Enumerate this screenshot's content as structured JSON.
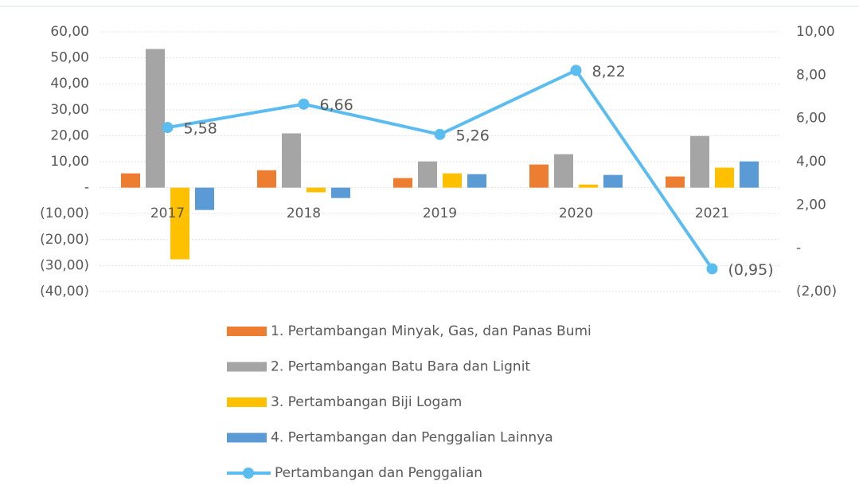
{
  "chart_data": {
    "type": "bar",
    "categories": [
      "2017",
      "2018",
      "2019",
      "2020",
      "2021"
    ],
    "series": [
      {
        "name": "1. Pertambangan Minyak, Gas, dan Panas Bumi",
        "color": "#ed7d31",
        "values": [
          5.5,
          6.7,
          3.7,
          8.9,
          4.3
        ]
      },
      {
        "name": "2. Pertambangan Batu Bara dan Lignit",
        "color": "#a5a5a5",
        "values": [
          53.4,
          20.9,
          10.1,
          12.9,
          19.9
        ]
      },
      {
        "name": "3. Pertambangan Biji Logam",
        "color": "#ffc000",
        "values": [
          -27.6,
          -1.8,
          5.5,
          1.2,
          7.7
        ]
      },
      {
        "name": "4. Pertambangan dan Penggalian Lainnya",
        "color": "#5b9bd5",
        "values": [
          -8.6,
          -4.0,
          5.2,
          4.9,
          10.1
        ]
      },
      {
        "name": "Pertambangan dan Penggalian",
        "color": "#5bbcf0",
        "type": "line",
        "axis": "y2",
        "values": [
          5.58,
          6.66,
          5.26,
          8.22,
          -0.95
        ],
        "value_labels": [
          "5,58",
          "6,66",
          "5,26",
          "8,22",
          "(0,95)"
        ]
      }
    ],
    "ylim": [
      -40,
      60
    ],
    "yticks": [
      {
        "value": 60,
        "label": "60,00"
      },
      {
        "value": 50,
        "label": "50,00"
      },
      {
        "value": 40,
        "label": "40,00"
      },
      {
        "value": 30,
        "label": "30,00"
      },
      {
        "value": 20,
        "label": "20,00"
      },
      {
        "value": 10,
        "label": "10,00"
      },
      {
        "value": 0,
        "label": "-"
      },
      {
        "value": -10,
        "label": "(10,00)"
      },
      {
        "value": -20,
        "label": "(20,00)"
      },
      {
        "value": -30,
        "label": "(30,00)"
      },
      {
        "value": -40,
        "label": "(40,00)"
      }
    ],
    "y2lim": [
      -2,
      10
    ],
    "y2ticks": [
      {
        "value": 10,
        "label": "10,00"
      },
      {
        "value": 8,
        "label": "8,00"
      },
      {
        "value": 6,
        "label": "6,00"
      },
      {
        "value": 4,
        "label": "4,00"
      },
      {
        "value": 2,
        "label": "2,00"
      },
      {
        "value": 0,
        "label": "-"
      },
      {
        "value": -2,
        "label": "(2,00)"
      }
    ],
    "grid": true,
    "legend": "bottom"
  }
}
